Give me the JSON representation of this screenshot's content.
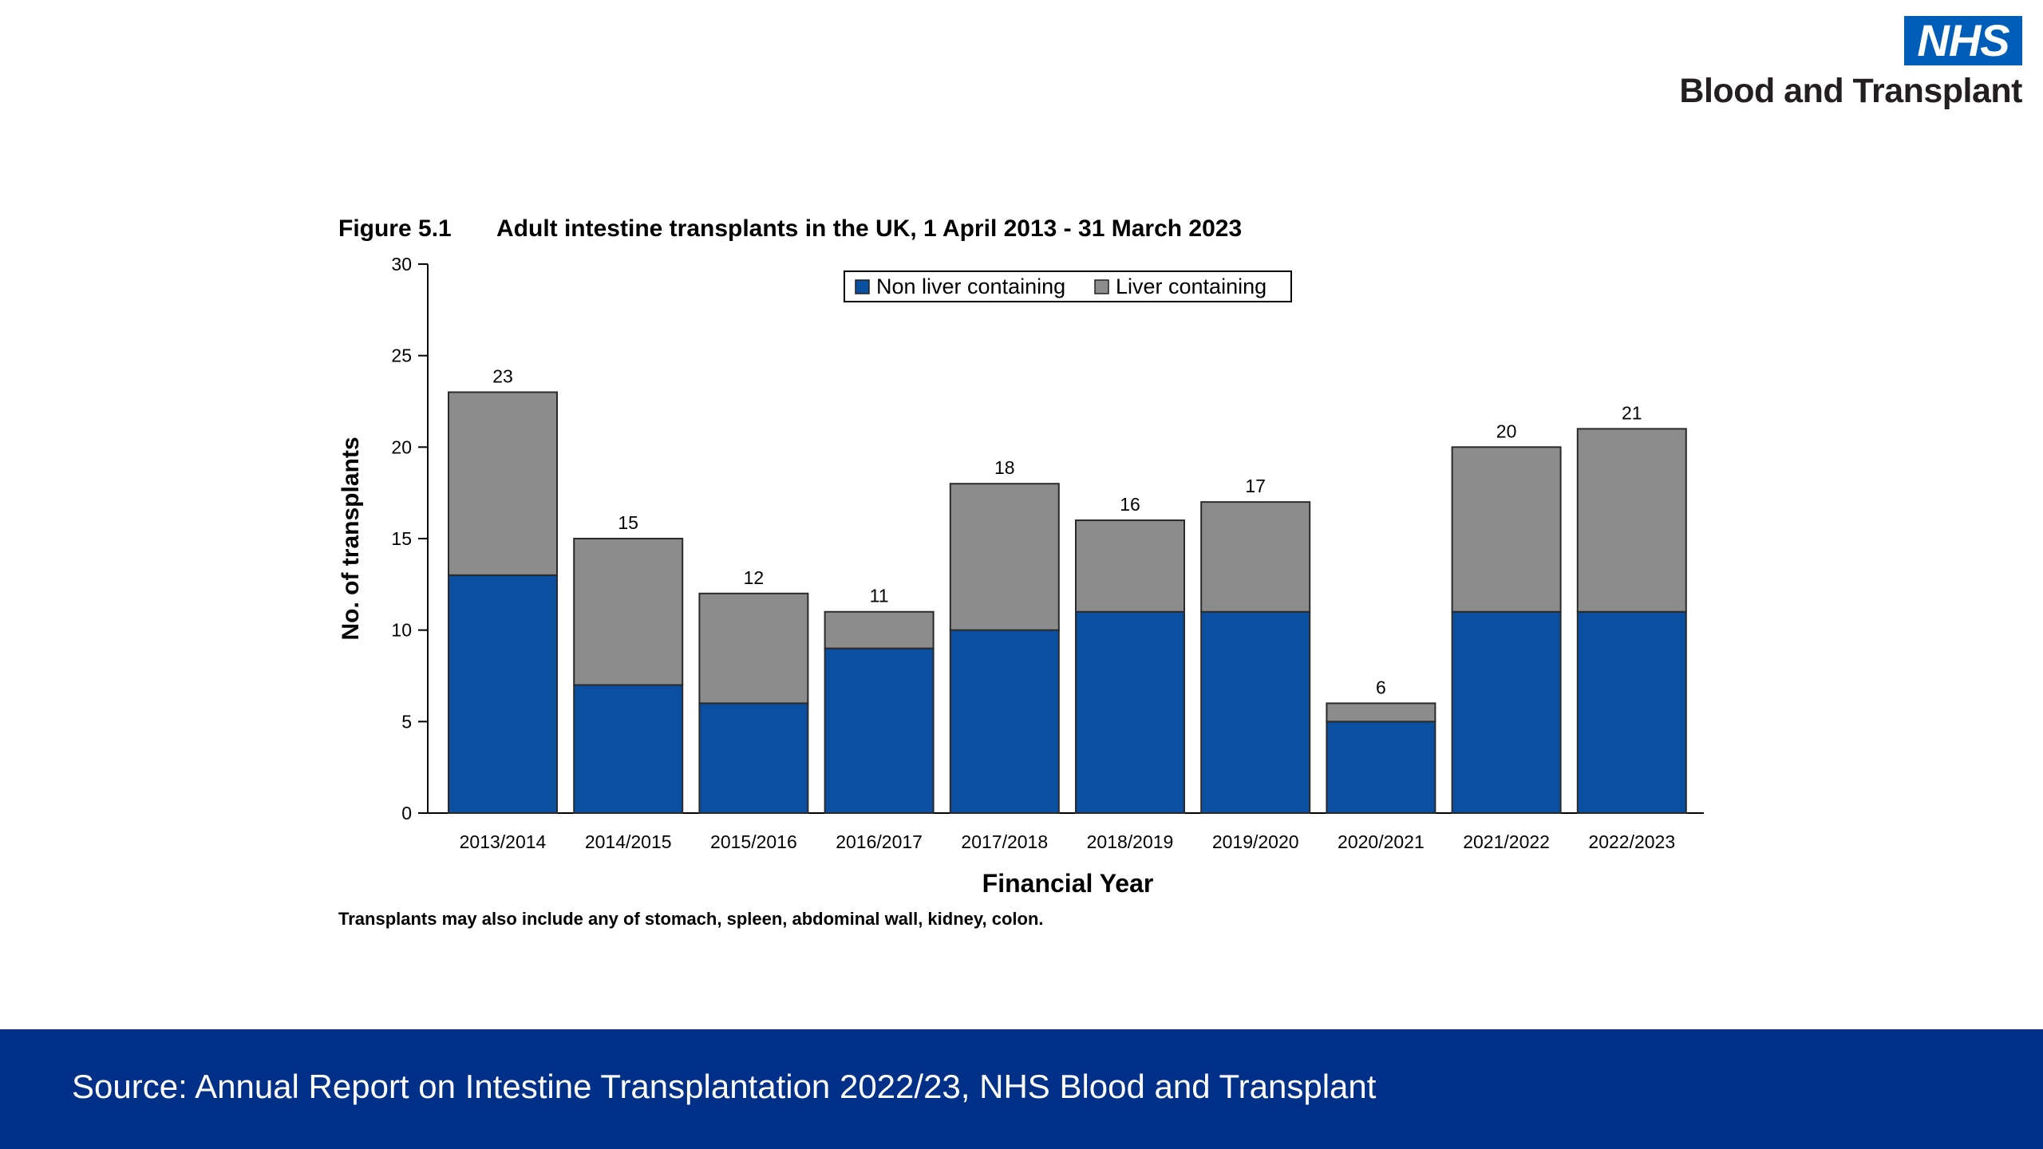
{
  "logo": {
    "badge": "NHS",
    "org_name": "Blood and Transplant"
  },
  "chart_data": {
    "type": "bar",
    "stacked": true,
    "figure_label": "Figure 5.1",
    "title": "Adult intestine transplants in the UK, 1 April 2013 - 31 March 2023",
    "xlabel": "Financial Year",
    "ylabel": "No. of transplants",
    "ylim": [
      0,
      30
    ],
    "yticks": [
      0,
      5,
      10,
      15,
      20,
      25,
      30
    ],
    "categories": [
      "2013/2014",
      "2014/2015",
      "2015/2016",
      "2016/2017",
      "2017/2018",
      "2018/2019",
      "2019/2020",
      "2020/2021",
      "2021/2022",
      "2022/2023"
    ],
    "series": [
      {
        "name": "Non liver containing",
        "color": "#0b4fa0",
        "values": [
          13,
          7,
          6,
          9,
          10,
          11,
          11,
          5,
          11,
          11
        ]
      },
      {
        "name": "Liver containing",
        "color": "#8c8c8c",
        "values": [
          10,
          8,
          6,
          2,
          8,
          5,
          6,
          1,
          9,
          10
        ]
      }
    ],
    "totals": [
      23,
      15,
      12,
      11,
      18,
      16,
      17,
      6,
      20,
      21
    ],
    "legend_position": "top",
    "grid": false,
    "footnote": "Transplants may also include any of stomach, spleen, abdominal wall, kidney, colon."
  },
  "footer": {
    "source": "Source: Annual Report on Intestine Transplantation 2022/23, NHS Blood and Transplant"
  }
}
